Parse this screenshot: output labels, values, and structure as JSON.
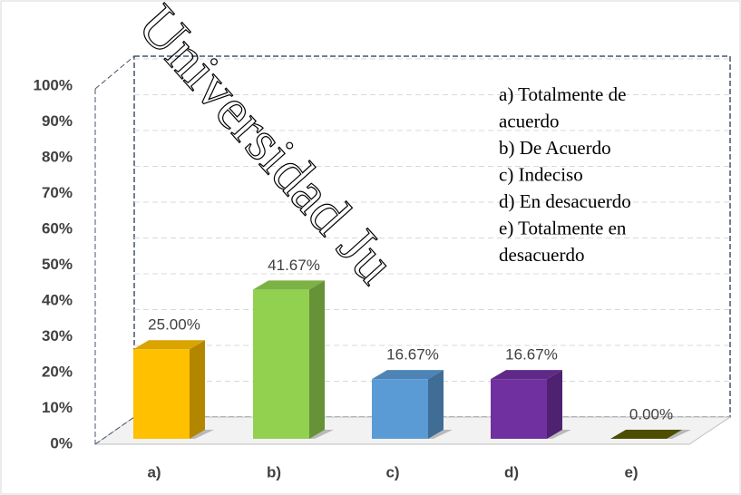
{
  "chart_data": {
    "type": "bar",
    "categories": [
      "a)",
      "b)",
      "c)",
      "d)",
      "e)"
    ],
    "values": [
      25,
      41.67,
      16.67,
      16.67,
      0
    ],
    "value_labels": [
      "25.00%",
      "41.67%",
      "16.67%",
      "16.67%",
      "0.00%"
    ],
    "colors": [
      "#ffc000",
      "#92d050",
      "#5b9bd5",
      "#7030a0",
      "#5a5a00"
    ],
    "ylim": [
      0,
      100
    ],
    "yticks": [
      {
        "value": 0,
        "label": "0%"
      },
      {
        "value": 10,
        "label": "10%"
      },
      {
        "value": 20,
        "label": "20%"
      },
      {
        "value": 30,
        "label": "30%"
      },
      {
        "value": 40,
        "label": "40%"
      },
      {
        "value": 50,
        "label": "50%"
      },
      {
        "value": 60,
        "label": "60%"
      },
      {
        "value": 70,
        "label": "70%"
      },
      {
        "value": 80,
        "label": "80%"
      },
      {
        "value": 90,
        "label": "90%"
      },
      {
        "value": 100,
        "label": "100%"
      }
    ],
    "grid": true,
    "annotation_lines": [
      "a) Totalmente de",
      "acuerdo",
      "b) De Acuerdo",
      "c) Indeciso",
      "d) En desacuerdo",
      "e) Totalmente en",
      "desacuerdo"
    ],
    "watermark": "Universidad Ju"
  }
}
